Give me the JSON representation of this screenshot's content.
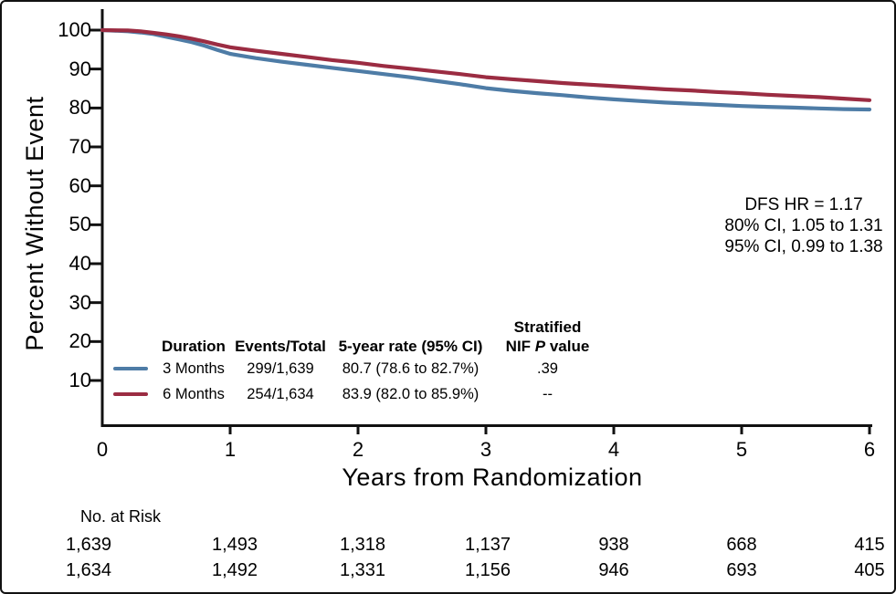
{
  "chart_data": {
    "type": "line",
    "xlabel": "Years from Randomization",
    "ylabel": "Percent Without Event",
    "xlim": [
      0,
      6
    ],
    "ylim": [
      0,
      105
    ],
    "xticks": [
      0,
      1,
      2,
      3,
      4,
      5,
      6
    ],
    "yticks": [
      10,
      20,
      30,
      40,
      50,
      60,
      70,
      80,
      90,
      100
    ],
    "grid": false,
    "legend_position": "lower-left-table",
    "series": [
      {
        "name": "3 Months",
        "color": "#4e7ca6",
        "x": [
          0,
          0.2,
          0.3,
          0.4,
          0.5,
          0.6,
          0.7,
          0.8,
          0.9,
          1.0,
          1.2,
          1.4,
          1.6,
          1.8,
          2.0,
          2.2,
          2.4,
          2.6,
          2.8,
          3.0,
          3.2,
          3.4,
          3.6,
          3.8,
          4.0,
          4.2,
          4.4,
          4.6,
          4.8,
          5.0,
          5.2,
          5.4,
          5.6,
          5.8,
          6.0
        ],
        "y": [
          100,
          99.7,
          99.4,
          99.0,
          98.3,
          97.6,
          96.9,
          96.0,
          94.9,
          93.9,
          92.8,
          91.9,
          91.1,
          90.3,
          89.5,
          88.7,
          87.9,
          87.0,
          86.1,
          85.1,
          84.4,
          83.8,
          83.3,
          82.7,
          82.2,
          81.8,
          81.4,
          81.1,
          80.8,
          80.5,
          80.3,
          80.1,
          79.9,
          79.7,
          79.6
        ]
      },
      {
        "name": "6 Months",
        "color": "#9b2c42",
        "x": [
          0,
          0.2,
          0.3,
          0.4,
          0.5,
          0.6,
          0.7,
          0.8,
          0.9,
          1.0,
          1.2,
          1.4,
          1.6,
          1.8,
          2.0,
          2.2,
          2.4,
          2.6,
          2.8,
          3.0,
          3.2,
          3.4,
          3.6,
          3.8,
          4.0,
          4.2,
          4.4,
          4.6,
          4.8,
          5.0,
          5.2,
          5.4,
          5.6,
          5.8,
          6.0
        ],
        "y": [
          100,
          99.9,
          99.7,
          99.3,
          98.9,
          98.4,
          97.8,
          97.1,
          96.3,
          95.6,
          94.7,
          93.9,
          93.1,
          92.3,
          91.6,
          90.8,
          90.1,
          89.4,
          88.7,
          87.9,
          87.4,
          86.9,
          86.4,
          86.0,
          85.6,
          85.2,
          84.8,
          84.5,
          84.1,
          83.8,
          83.4,
          83.1,
          82.8,
          82.4,
          82.0
        ]
      }
    ]
  },
  "annotation": {
    "lines": [
      "DFS HR = 1.17",
      "80% CI, 1.05 to 1.31",
      "95% CI, 0.99 to 1.38"
    ]
  },
  "legend_table": {
    "headers": {
      "duration": "Duration",
      "events_total": "Events/Total",
      "rate": "5-year rate (95% CI)",
      "pvalue_top": "Stratified",
      "pvalue_prefix": "NIF ",
      "pvalue_italic": "P",
      "pvalue_suffix": " value"
    },
    "rows": [
      {
        "duration": "3 Months",
        "events_total": "299/1,639",
        "rate": "80.7 (78.6 to 82.7%)",
        "pvalue": ".39"
      },
      {
        "duration": "6 Months",
        "events_total": "254/1,634",
        "rate": "83.9 (82.0 to 85.9%)",
        "pvalue": "--"
      }
    ]
  },
  "risk_table": {
    "title": "No. at Risk",
    "rows": [
      [
        "1,639",
        "1,493",
        "1,318",
        "1,137",
        "938",
        "668",
        "415"
      ],
      [
        "1,634",
        "1,492",
        "1,331",
        "1,156",
        "946",
        "693",
        "405"
      ]
    ]
  }
}
